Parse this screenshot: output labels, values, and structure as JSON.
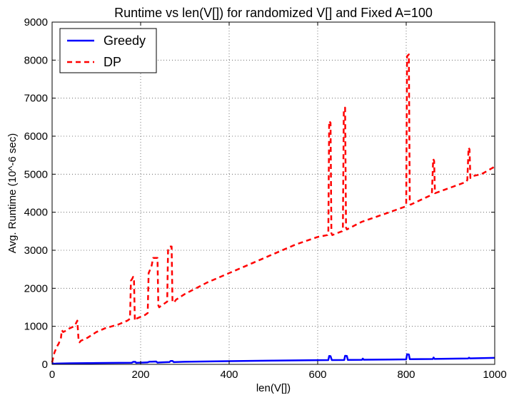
{
  "chart_data": {
    "type": "line",
    "title": "Runtime vs len(V[]) for randomized V[] and Fixed A=100",
    "xlabel": "len(V[])",
    "ylabel": "Avg. Runtime (10^-6 sec)",
    "xlim": [
      0,
      1000
    ],
    "ylim": [
      0,
      9000
    ],
    "xticks": [
      0,
      200,
      400,
      600,
      800,
      1000
    ],
    "yticks": [
      0,
      1000,
      2000,
      3000,
      4000,
      5000,
      6000,
      7000,
      8000,
      9000
    ],
    "grid": true,
    "legend_position": "top-left",
    "series": [
      {
        "name": "Greedy",
        "color": "#0000ff",
        "style": "solid",
        "x": [
          0,
          2,
          4,
          10,
          20,
          40,
          60,
          80,
          100,
          150,
          180,
          183,
          188,
          190,
          193,
          200,
          215,
          220,
          225,
          235,
          238,
          242,
          250,
          265,
          268,
          272,
          275,
          280,
          300,
          400,
          500,
          600,
          624,
          626,
          629,
          632,
          660,
          662,
          666,
          668,
          700,
          702,
          704,
          760,
          800,
          802,
          806,
          808,
          860,
          862,
          864,
          940,
          942,
          944,
          1000
        ],
        "y": [
          10,
          30,
          15,
          20,
          25,
          28,
          30,
          32,
          35,
          40,
          42,
          65,
          65,
          40,
          42,
          45,
          50,
          70,
          72,
          75,
          45,
          48,
          55,
          60,
          90,
          90,
          58,
          60,
          68,
          85,
          100,
          110,
          112,
          220,
          215,
          112,
          115,
          225,
          220,
          118,
          120,
          150,
          122,
          128,
          132,
          265,
          260,
          135,
          140,
          180,
          142,
          155,
          175,
          158,
          170
        ]
      },
      {
        "name": "DP",
        "color": "#ff0000",
        "style": "dashed",
        "x": [
          0,
          2,
          5,
          10,
          15,
          20,
          22,
          25,
          30,
          40,
          50,
          55,
          57,
          60,
          62,
          65,
          80,
          100,
          120,
          150,
          170,
          176,
          178,
          181,
          183,
          185,
          187,
          190,
          210,
          216,
          218,
          220,
          225,
          228,
          238,
          240,
          242,
          244,
          260,
          262,
          265,
          270,
          272,
          275,
          280,
          300,
          350,
          400,
          450,
          500,
          550,
          600,
          622,
          624,
          626,
          629,
          631,
          633,
          655,
          657,
          659,
          662,
          664,
          666,
          700,
          750,
          798,
          800,
          802,
          806,
          808,
          810,
          856,
          858,
          861,
          863,
          865,
          936,
          938,
          941,
          943,
          945,
          950,
          970,
          1000
        ],
        "y": [
          50,
          150,
          300,
          450,
          550,
          700,
          900,
          850,
          880,
          950,
          1000,
          1100,
          1150,
          600,
          580,
          620,
          700,
          850,
          950,
          1050,
          1150,
          1200,
          2200,
          2250,
          2300,
          2200,
          1150,
          1200,
          1300,
          1350,
          2400,
          2450,
          2600,
          2800,
          2800,
          1550,
          1500,
          1520,
          1650,
          3000,
          3100,
          3100,
          1650,
          1620,
          1700,
          1850,
          2150,
          2400,
          2650,
          2900,
          3150,
          3350,
          3400,
          3450,
          6400,
          6350,
          3450,
          3400,
          3500,
          3550,
          6700,
          6750,
          3600,
          3550,
          3750,
          3950,
          4150,
          4200,
          8100,
          8150,
          4250,
          4200,
          4450,
          4500,
          5400,
          5350,
          4500,
          4800,
          4850,
          5700,
          5650,
          4900,
          4950,
          5000,
          5200
        ]
      }
    ]
  }
}
